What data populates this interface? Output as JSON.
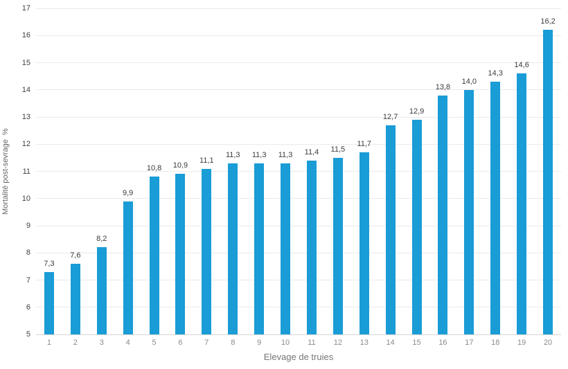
{
  "chart_data": {
    "type": "bar",
    "title": "",
    "xlabel": "Elevage de truies",
    "ylabel": "Mortalité post-sevrage  %",
    "categories": [
      "1",
      "2",
      "3",
      "4",
      "5",
      "6",
      "7",
      "8",
      "9",
      "10",
      "11",
      "12",
      "13",
      "14",
      "15",
      "16",
      "17",
      "18",
      "19",
      "20"
    ],
    "values": [
      7.3,
      7.6,
      8.2,
      9.9,
      10.8,
      10.9,
      11.1,
      11.3,
      11.3,
      11.3,
      11.4,
      11.5,
      11.7,
      12.7,
      12.9,
      13.8,
      14.0,
      14.3,
      14.6,
      16.2
    ],
    "value_labels": [
      "7,3",
      "7,6",
      "8,2",
      "9,9",
      "10,8",
      "10,9",
      "11,1",
      "11,3",
      "11,3",
      "11,3",
      "11,4",
      "11,5",
      "11,7",
      "12,7",
      "12,9",
      "13,8",
      "14,0",
      "14,3",
      "14,6",
      "16,2"
    ],
    "ylim": [
      5,
      17
    ],
    "ytick_step": 1,
    "ytick_labels": [
      "5",
      "6",
      "7",
      "8",
      "9",
      "10",
      "11",
      "12",
      "13",
      "14",
      "15",
      "16",
      "17"
    ],
    "grid": true,
    "legend": "none",
    "colors": {
      "bar": "#1a9cd6",
      "gridline": "#e9e9e9",
      "baseline": "#d4d4d4",
      "ytick_text": "#3f3f3f",
      "xtick_text": "#8a8a8a",
      "value_text": "#3a3a3a",
      "axis_title_text": "#666666",
      "background": "#ffffff"
    }
  }
}
